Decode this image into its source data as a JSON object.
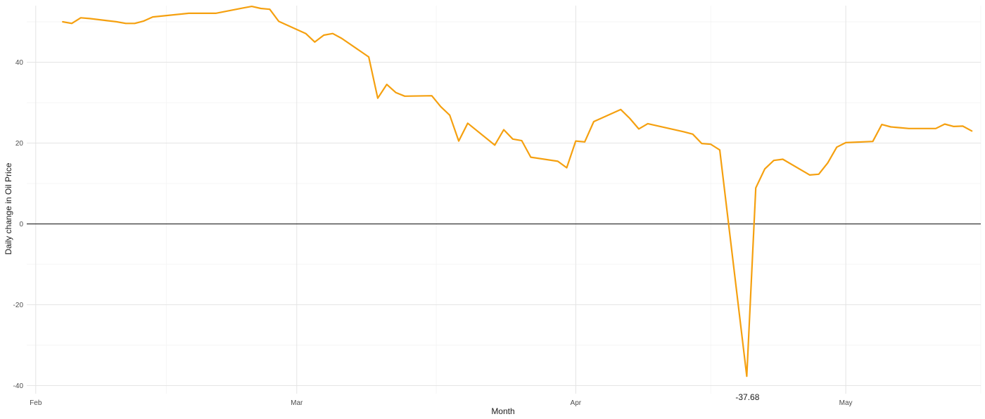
{
  "chart_data": {
    "type": "line",
    "title": "",
    "xlabel": "Month",
    "ylabel": "Daily change in Oil Price",
    "x_ticks": [
      {
        "label": "Feb",
        "date": "2020-02-01"
      },
      {
        "label": "Mar",
        "date": "2020-03-01"
      },
      {
        "label": "Apr",
        "date": "2020-04-01"
      },
      {
        "label": "May",
        "date": "2020-05-01"
      }
    ],
    "y_ticks": [
      -40,
      -20,
      0,
      20,
      40
    ],
    "xlim": [
      "2020-01-31",
      "2020-05-16"
    ],
    "ylim": [
      -42,
      54
    ],
    "grid": true,
    "reference_line": 0,
    "line_color": "#F5A00F",
    "annotation": {
      "text": "-37.68",
      "date": "2020-04-20",
      "value": -37.68
    },
    "series": [
      {
        "x": [
          "2020-02-04",
          "2020-02-05",
          "2020-02-06",
          "2020-02-07",
          "2020-02-10",
          "2020-02-11",
          "2020-02-12",
          "2020-02-13",
          "2020-02-14",
          "2020-02-18",
          "2020-02-19",
          "2020-02-20",
          "2020-02-21",
          "2020-02-24",
          "2020-02-25",
          "2020-02-26",
          "2020-02-27",
          "2020-02-28",
          "2020-03-02",
          "2020-03-03",
          "2020-03-04",
          "2020-03-05",
          "2020-03-06",
          "2020-03-09",
          "2020-03-10",
          "2020-03-11",
          "2020-03-12",
          "2020-03-13",
          "2020-03-16",
          "2020-03-17",
          "2020-03-18",
          "2020-03-19",
          "2020-03-20",
          "2020-03-23",
          "2020-03-24",
          "2020-03-25",
          "2020-03-26",
          "2020-03-27",
          "2020-03-30",
          "2020-03-31",
          "2020-04-01",
          "2020-04-02",
          "2020-04-03",
          "2020-04-06",
          "2020-04-07",
          "2020-04-08",
          "2020-04-09",
          "2020-04-13",
          "2020-04-14",
          "2020-04-15",
          "2020-04-16",
          "2020-04-17",
          "2020-04-20",
          "2020-04-21",
          "2020-04-22",
          "2020-04-23",
          "2020-04-24",
          "2020-04-27",
          "2020-04-28",
          "2020-04-29",
          "2020-04-30",
          "2020-05-01",
          "2020-05-04",
          "2020-05-05",
          "2020-05-06",
          "2020-05-07",
          "2020-05-08",
          "2020-05-11",
          "2020-05-12",
          "2020-05-13",
          "2020-05-14",
          "2020-05-15"
        ],
        "values": [
          50.0,
          49.6,
          51.0,
          50.8,
          50.0,
          49.6,
          49.6,
          50.2,
          51.2,
          52.1,
          52.1,
          52.1,
          52.1,
          53.4,
          53.8,
          53.3,
          53.1,
          50.1,
          47.1,
          45.0,
          46.7,
          47.1,
          45.9,
          41.3,
          31.1,
          34.5,
          32.5,
          31.6,
          31.7,
          29.0,
          26.9,
          20.5,
          24.9,
          19.5,
          23.3,
          21.0,
          20.6,
          16.5,
          15.5,
          13.9,
          20.5,
          20.3,
          25.3,
          28.3,
          26.1,
          23.5,
          24.8,
          22.8,
          22.2,
          19.9,
          19.7,
          18.3,
          -37.68,
          8.9,
          13.6,
          15.7,
          16.0,
          12.1,
          12.3,
          15.1,
          19.0,
          20.1,
          20.4,
          24.6,
          24.0,
          23.8,
          23.6,
          23.6,
          24.7,
          24.1,
          24.2,
          23.0
        ]
      }
    ]
  }
}
